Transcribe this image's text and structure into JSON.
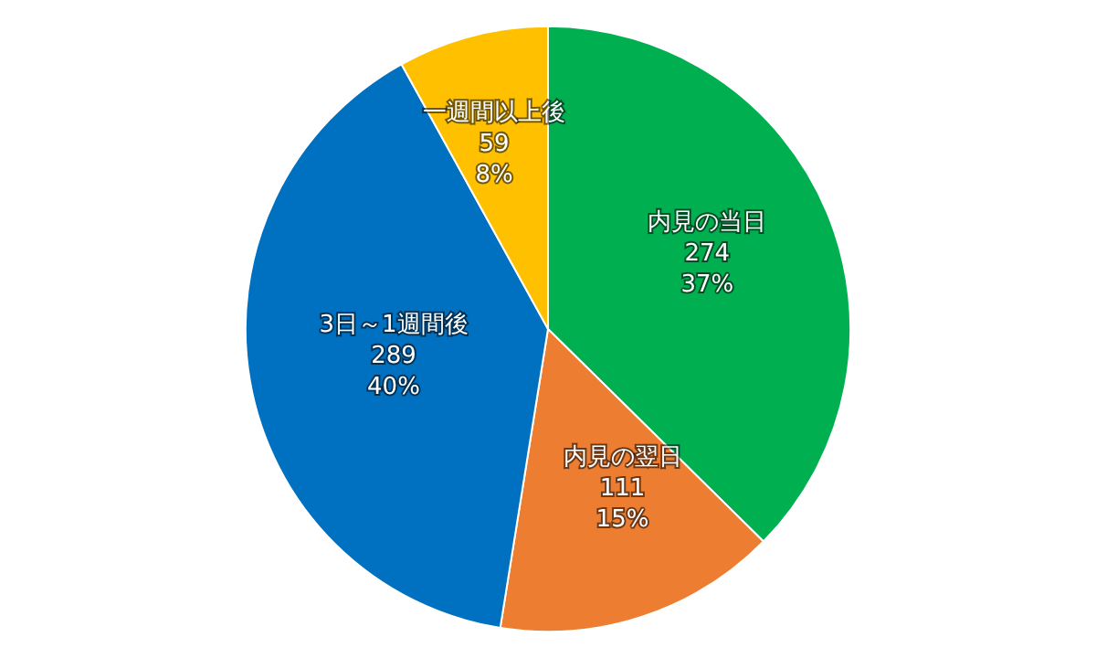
{
  "chart_data": {
    "type": "pie",
    "categories": [
      "内見の当日",
      "内見の翌日",
      "3日～1週間後",
      "一週間以上後"
    ],
    "values": [
      274,
      111,
      289,
      59
    ],
    "colors": [
      "#00b050",
      "#ed7d31",
      "#0070c0",
      "#ffc000"
    ],
    "value_labels": [
      "274\n37%",
      "111\n15%",
      "289\n40%",
      "59\n8%"
    ],
    "legend": false
  }
}
